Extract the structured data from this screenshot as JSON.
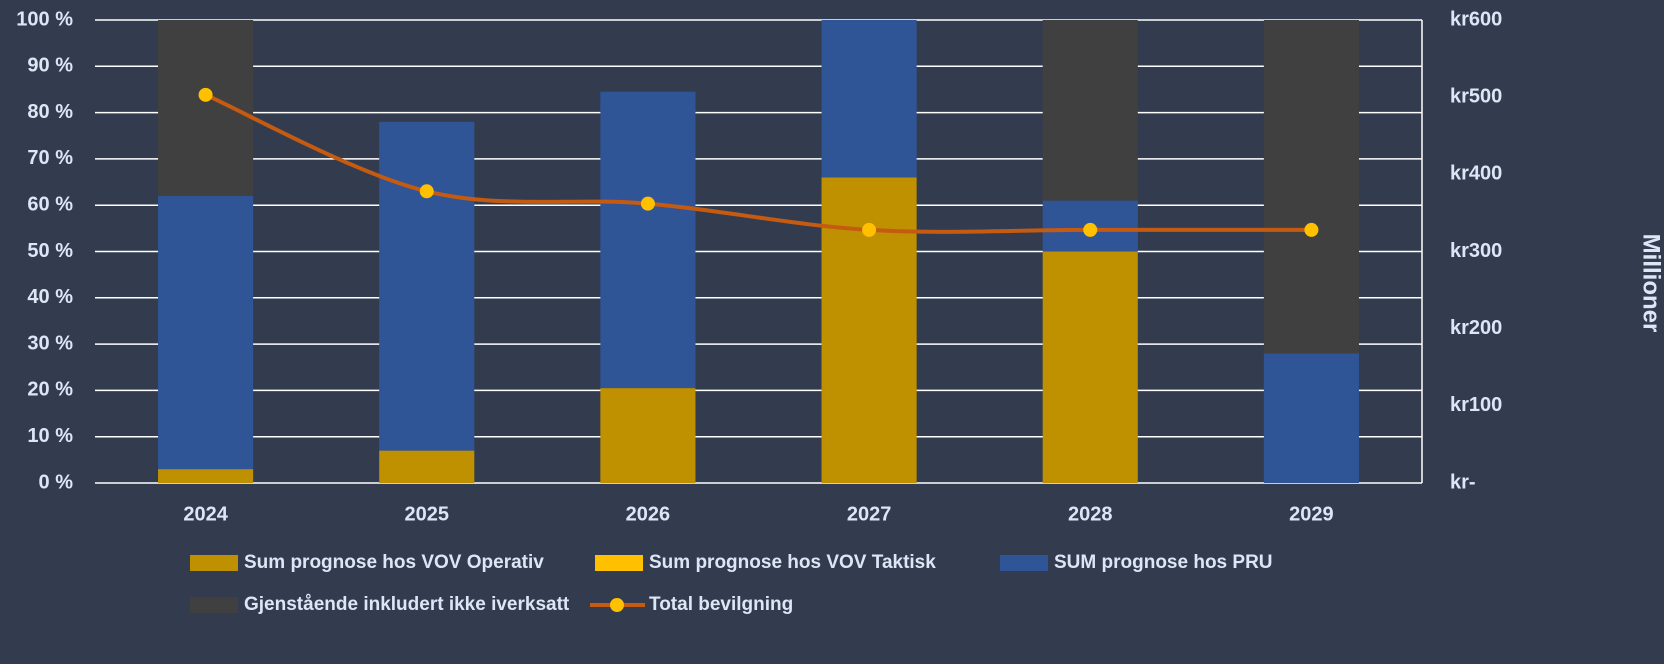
{
  "chart_data": {
    "type": "bar",
    "categories": [
      "2024",
      "2025",
      "2026",
      "2027",
      "2028",
      "2029"
    ],
    "series": [
      {
        "name": "Sum prognose hos VOV Operativ",
        "color": "#bf9000",
        "values": [
          3,
          7,
          20.5,
          66,
          50,
          0
        ]
      },
      {
        "name": "Sum prognose hos VOV Taktisk",
        "color": "#ffc000",
        "values": [
          0,
          0,
          0,
          0,
          0,
          0
        ]
      },
      {
        "name": "SUM prognose hos PRU",
        "color": "#2f5597",
        "values": [
          59,
          71,
          64,
          34,
          11,
          28
        ]
      },
      {
        "name": "Gjenstående inkludert ikke iverksatt",
        "color": "#404040",
        "values": [
          38,
          0,
          0,
          0,
          39,
          72
        ]
      },
      {
        "name": "Total bevilgning",
        "type": "line",
        "axis": "y2",
        "color": "#c55a11",
        "marker_color": "#ffc000",
        "values": [
          503,
          378,
          362,
          328,
          328,
          328
        ]
      }
    ],
    "ylim": [
      0,
      100
    ],
    "yticks": [
      {
        "value": 0,
        "label": "0 %"
      },
      {
        "value": 10,
        "label": "10 %"
      },
      {
        "value": 20,
        "label": "20 %"
      },
      {
        "value": 30,
        "label": "30 %"
      },
      {
        "value": 40,
        "label": "40 %"
      },
      {
        "value": 50,
        "label": "50 %"
      },
      {
        "value": 60,
        "label": "60 %"
      },
      {
        "value": 70,
        "label": "70 %"
      },
      {
        "value": 80,
        "label": "80 %"
      },
      {
        "value": 90,
        "label": "90 %"
      },
      {
        "value": 100,
        "label": "100 %"
      }
    ],
    "y2lim": [
      0,
      600
    ],
    "y2ticks": [
      {
        "value": 0,
        "label": "kr-"
      },
      {
        "value": 100,
        "label": "kr100"
      },
      {
        "value": 200,
        "label": "kr200"
      },
      {
        "value": 300,
        "label": "kr300"
      },
      {
        "value": 400,
        "label": "kr400"
      },
      {
        "value": 500,
        "label": "kr500"
      },
      {
        "value": 600,
        "label": "kr600"
      }
    ],
    "y2_label": "Millioner",
    "stacked": true,
    "grid": true,
    "legend": "bottom"
  }
}
